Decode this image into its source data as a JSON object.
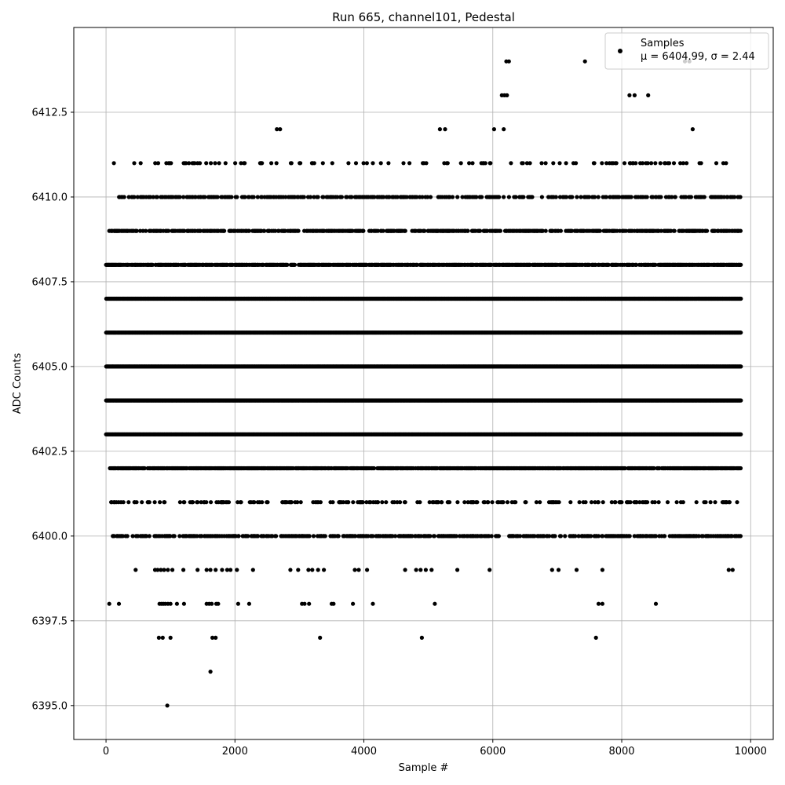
{
  "chart_data": {
    "type": "scatter",
    "title": "Run 665, channel101, Pedestal",
    "xlabel": "Sample #",
    "ylabel": "ADC Counts",
    "xlim": [
      -500,
      10350
    ],
    "ylim": [
      6394.0,
      6415.0
    ],
    "x_ticks": [
      0,
      2000,
      4000,
      6000,
      8000,
      10000
    ],
    "x_tick_labels": [
      "0",
      "2000",
      "4000",
      "6000",
      "8000",
      "10000"
    ],
    "y_ticks": [
      6395.0,
      6397.5,
      6400.0,
      6402.5,
      6405.0,
      6407.5,
      6410.0,
      6412.5
    ],
    "y_tick_labels": [
      "6395.0",
      "6397.5",
      "6400.0",
      "6402.5",
      "6405.0",
      "6407.5",
      "6410.0",
      "6412.5"
    ],
    "grid": true,
    "legend_position": "top-right",
    "series": [
      {
        "name": "Samples",
        "color": "#000000",
        "n_samples": 9850,
        "levels": [
          {
            "y": 6395,
            "x": [
              950
            ]
          },
          {
            "y": 6396,
            "x": [
              1620
            ]
          },
          {
            "y": 6397,
            "x": [
              820,
              880,
              1000,
              1650,
              1700,
              3320,
              4900,
              7600
            ]
          },
          {
            "y": 6398,
            "x": [
              50,
              200,
              830,
              860,
              890,
              920,
              960,
              1000,
              1100,
              1210,
              1560,
              1600,
              1640,
              1710,
              1740,
              2050,
              2220,
              3040,
              3080,
              3150,
              3500,
              3530,
              3830,
              4140,
              5100,
              7640,
              7700,
              8530
            ]
          },
          {
            "y": 6399,
            "x": [
              460,
              760,
              800,
              850,
              900,
              960,
              1030,
              1200,
              1420,
              1560,
              1620,
              1700,
              1800,
              1880,
              1930,
              2030,
              2280,
              2860,
              2980,
              3140,
              3200,
              3290,
              3380,
              3860,
              3920,
              4050,
              4640,
              4810,
              4880,
              4960,
              5050,
              5450,
              5950,
              6920,
              7020,
              7300,
              7700,
              9660,
              9720
            ]
          },
          {
            "y": 6412,
            "x": [
              2650,
              2700,
              5180,
              5260,
              6020,
              6170,
              9100
            ]
          },
          {
            "y": 6413,
            "x": [
              6140,
              6180,
              6220,
              8120,
              8200,
              8410
            ]
          },
          {
            "y": 6414,
            "x": [
              6210,
              6250,
              7430,
              8980,
              9050
            ]
          }
        ],
        "dense_levels": [
          {
            "y": 6400,
            "x_from": 50,
            "x_to": 9850,
            "density": 0.42
          },
          {
            "y": 6401,
            "x_from": 50,
            "x_to": 9850,
            "density": 0.18
          },
          {
            "y": 6402,
            "x_from": 50,
            "x_to": 9850,
            "density": 0.75
          },
          {
            "y": 6403,
            "x_from": 0,
            "x_to": 9850,
            "density": 1.0
          },
          {
            "y": 6404,
            "x_from": 0,
            "x_to": 9850,
            "density": 1.0
          },
          {
            "y": 6405,
            "x_from": 0,
            "x_to": 9850,
            "density": 1.0
          },
          {
            "y": 6406,
            "x_from": 0,
            "x_to": 9850,
            "density": 1.0
          },
          {
            "y": 6407,
            "x_from": 0,
            "x_to": 9850,
            "density": 1.0
          },
          {
            "y": 6408,
            "x_from": 0,
            "x_to": 9850,
            "density": 0.7
          },
          {
            "y": 6409,
            "x_from": 50,
            "x_to": 9850,
            "density": 0.45
          },
          {
            "y": 6410,
            "x_from": 200,
            "x_to": 9850,
            "density": 0.28
          },
          {
            "y": 6411,
            "x_from": 50,
            "x_to": 9850,
            "density": 0.12
          }
        ]
      }
    ],
    "stats": {
      "mu": "6404.99",
      "sigma": "2.44"
    }
  },
  "legend": {
    "series_label": "Samples",
    "stats_prefix": "μ = 6404.99, ",
    "stats_suffix": "σ = 2.44"
  }
}
